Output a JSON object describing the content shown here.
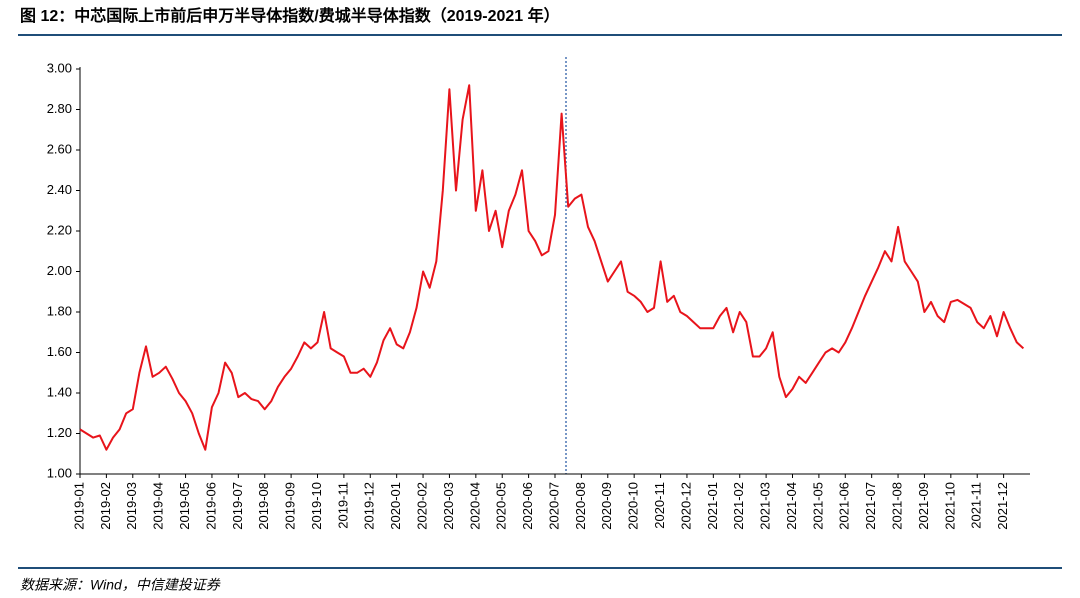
{
  "chart_data": {
    "type": "line",
    "title": "图 12：中芯国际上市前后申万半导体指数/费城半导体指数（2019-2021 年）",
    "source": "数据来源：Wind，中信建投证券",
    "categories": [
      "2019-01",
      null,
      null,
      null,
      "2019-02",
      null,
      null,
      null,
      "2019-03",
      null,
      null,
      null,
      "2019-04",
      null,
      null,
      null,
      "2019-05",
      null,
      null,
      null,
      "2019-06",
      null,
      null,
      null,
      "2019-07",
      null,
      null,
      null,
      "2019-08",
      null,
      null,
      null,
      "2019-09",
      null,
      null,
      null,
      "2019-10",
      null,
      null,
      null,
      "2019-11",
      null,
      null,
      null,
      "2019-12",
      null,
      null,
      null,
      "2020-01",
      null,
      null,
      null,
      "2020-02",
      null,
      null,
      null,
      "2020-03",
      null,
      null,
      null,
      "2020-04",
      null,
      null,
      null,
      "2020-05",
      null,
      null,
      null,
      "2020-06",
      null,
      null,
      null,
      "2020-07",
      null,
      null,
      null,
      "2020-08",
      null,
      null,
      null,
      "2020-09",
      null,
      null,
      null,
      "2020-10",
      null,
      null,
      null,
      "2020-11",
      null,
      null,
      null,
      "2020-12",
      null,
      null,
      null,
      "2021-01",
      null,
      null,
      null,
      "2021-02",
      null,
      null,
      null,
      "2021-03",
      null,
      null,
      null,
      "2021-04",
      null,
      null,
      null,
      "2021-05",
      null,
      null,
      null,
      "2021-06",
      null,
      null,
      null,
      "2021-07",
      null,
      null,
      null,
      "2021-08",
      null,
      null,
      null,
      "2021-09",
      null,
      null,
      null,
      "2021-10",
      null,
      null,
      null,
      "2021-11",
      null,
      null,
      null,
      "2021-12",
      null,
      null,
      null
    ],
    "values": [
      1.22,
      1.2,
      1.18,
      1.19,
      1.12,
      1.18,
      1.22,
      1.3,
      1.32,
      1.5,
      1.63,
      1.48,
      1.5,
      1.53,
      1.47,
      1.4,
      1.36,
      1.3,
      1.2,
      1.12,
      1.33,
      1.4,
      1.55,
      1.5,
      1.38,
      1.4,
      1.37,
      1.36,
      1.32,
      1.36,
      1.43,
      1.48,
      1.52,
      1.58,
      1.65,
      1.62,
      1.65,
      1.8,
      1.62,
      1.6,
      1.58,
      1.5,
      1.5,
      1.52,
      1.48,
      1.55,
      1.66,
      1.72,
      1.64,
      1.62,
      1.7,
      1.82,
      2.0,
      1.92,
      2.05,
      2.4,
      2.9,
      2.4,
      2.75,
      2.92,
      2.3,
      2.5,
      2.2,
      2.3,
      2.12,
      2.3,
      2.38,
      2.5,
      2.2,
      2.15,
      2.08,
      2.1,
      2.28,
      2.78,
      2.32,
      2.36,
      2.38,
      2.22,
      2.15,
      2.05,
      1.95,
      2.0,
      2.05,
      1.9,
      1.88,
      1.85,
      1.8,
      1.82,
      2.05,
      1.85,
      1.88,
      1.8,
      1.78,
      1.75,
      1.72,
      1.72,
      1.72,
      1.78,
      1.82,
      1.7,
      1.8,
      1.75,
      1.58,
      1.58,
      1.62,
      1.7,
      1.48,
      1.38,
      1.42,
      1.48,
      1.45,
      1.5,
      1.55,
      1.6,
      1.62,
      1.6,
      1.65,
      1.72,
      1.8,
      1.88,
      1.95,
      2.02,
      2.1,
      2.05,
      2.22,
      2.05,
      2.0,
      1.95,
      1.8,
      1.85,
      1.78,
      1.75,
      1.85,
      1.86,
      1.84,
      1.82,
      1.75,
      1.72,
      1.78,
      1.68,
      1.8,
      1.72,
      1.65,
      1.62
    ],
    "color": "#e8141b",
    "ylim": [
      1,
      3
    ],
    "yticks": [
      {
        "value": 1,
        "label": "1.00"
      },
      {
        "value": 1.2,
        "label": "1.20"
      },
      {
        "value": 1.4,
        "label": "1.40"
      },
      {
        "value": 1.6,
        "label": "1.60"
      },
      {
        "value": 1.8,
        "label": "1.80"
      },
      {
        "value": 2,
        "label": "2.00"
      },
      {
        "value": 2.2,
        "label": "2.20"
      },
      {
        "value": 2.4,
        "label": "2.40"
      },
      {
        "value": 2.6,
        "label": "2.60"
      },
      {
        "value": 2.8,
        "label": "2.80"
      },
      {
        "value": 3,
        "label": "3.00"
      }
    ],
    "grid": false
  }
}
